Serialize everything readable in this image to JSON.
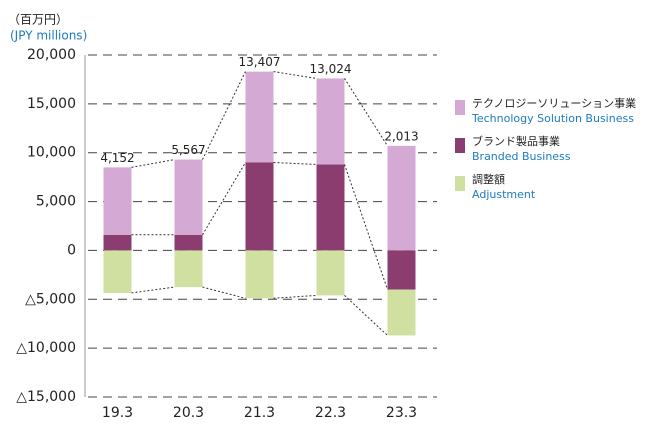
{
  "chart_data": {
    "type": "stacked_bar",
    "unit_label": "（百万円）",
    "unit_label_en": "(JPY millions)",
    "categories": [
      "19.3",
      "20.3",
      "21.3",
      "22.3",
      "23.3"
    ],
    "series": [
      {
        "name": "ブランド製品事業",
        "name_en": "Branded Business",
        "color": "#8a3d6e",
        "values": [
          1600,
          1600,
          9000,
          8800,
          -4000
        ]
      },
      {
        "name": "テクノロジーソリューション事業",
        "name_en": "Technology Solution Business",
        "color": "#d4a9d4",
        "values": [
          6900,
          7700,
          9300,
          8800,
          10700
        ]
      },
      {
        "name": "調整額",
        "name_en": "Adjustment",
        "color": "#cfe0a0",
        "values": [
          -4350,
          -3750,
          -4900,
          -4600,
          -4700
        ]
      }
    ],
    "totals": [
      4152,
      5567,
      13407,
      13024,
      2013
    ],
    "total_labels": [
      "4,152",
      "5,567",
      "13,407",
      "13,024",
      "2,013"
    ],
    "ylim": [
      -15000,
      20000
    ],
    "yticks": [
      {
        "value": 20000,
        "label": "20,000"
      },
      {
        "value": 15000,
        "label": "15,000"
      },
      {
        "value": 10000,
        "label": "10,000"
      },
      {
        "value": 5000,
        "label": "5,000"
      },
      0,
      {
        "value": -5000,
        "label": "△5,000"
      },
      {
        "value": -10000,
        "label": "△10,000"
      },
      {
        "value": -15000,
        "label": "△15,000"
      }
    ],
    "grid": true
  }
}
